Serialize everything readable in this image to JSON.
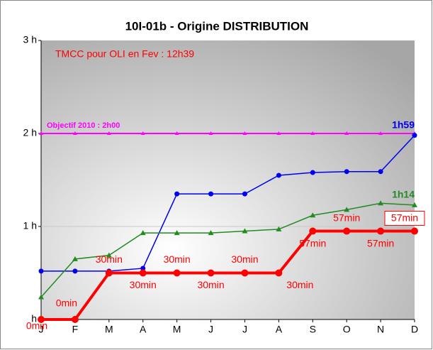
{
  "chart_data": {
    "type": "line",
    "title": "10I-01b - Origine DISTRIBUTION",
    "annotation": "TMCC pour OLI en Fev : 12h39",
    "categories": [
      "J",
      "F",
      "M",
      "A",
      "M",
      "J",
      "J",
      "A",
      "S",
      "O",
      "N",
      "D"
    ],
    "ylim": [
      0,
      3
    ],
    "yticks": [
      {
        "value": 0,
        "label": "h"
      },
      {
        "value": 1,
        "label": "1 h"
      },
      {
        "value": 2,
        "label": "2 h"
      },
      {
        "value": 3,
        "label": "3 h"
      }
    ],
    "grid": true,
    "objective": {
      "label": "Objectif 2010 : 2h00",
      "value": 2,
      "color": "#ff00ff"
    },
    "series": [
      {
        "color": "#0000ee",
        "marker": "circle",
        "width": 1.5,
        "values": [
          0.52,
          0.52,
          0.52,
          0.55,
          1.35,
          1.35,
          1.35,
          1.55,
          1.58,
          1.59,
          1.59,
          1.98
        ],
        "value_labels": [
          null,
          null,
          null,
          null,
          null,
          null,
          null,
          null,
          null,
          null,
          null,
          "1h59"
        ]
      },
      {
        "color": "#228b22",
        "marker": "triangle",
        "width": 1.5,
        "values": [
          0.24,
          0.65,
          0.69,
          0.93,
          0.93,
          0.93,
          0.95,
          0.97,
          1.12,
          1.18,
          1.25,
          1.23
        ],
        "value_labels": [
          null,
          null,
          null,
          null,
          null,
          null,
          null,
          null,
          null,
          null,
          null,
          "1h14"
        ]
      },
      {
        "color": "#ff0000",
        "marker": "circle",
        "width": 4,
        "values": [
          0,
          0,
          0.5,
          0.5,
          0.5,
          0.5,
          0.5,
          0.5,
          0.95,
          0.95,
          0.95,
          0.95
        ],
        "value_labels": [
          "0min",
          "0min",
          "30min",
          "30min",
          "30min",
          "30min",
          "30min",
          "30min",
          "57min",
          "57min",
          "57min",
          "57min"
        ]
      }
    ]
  }
}
